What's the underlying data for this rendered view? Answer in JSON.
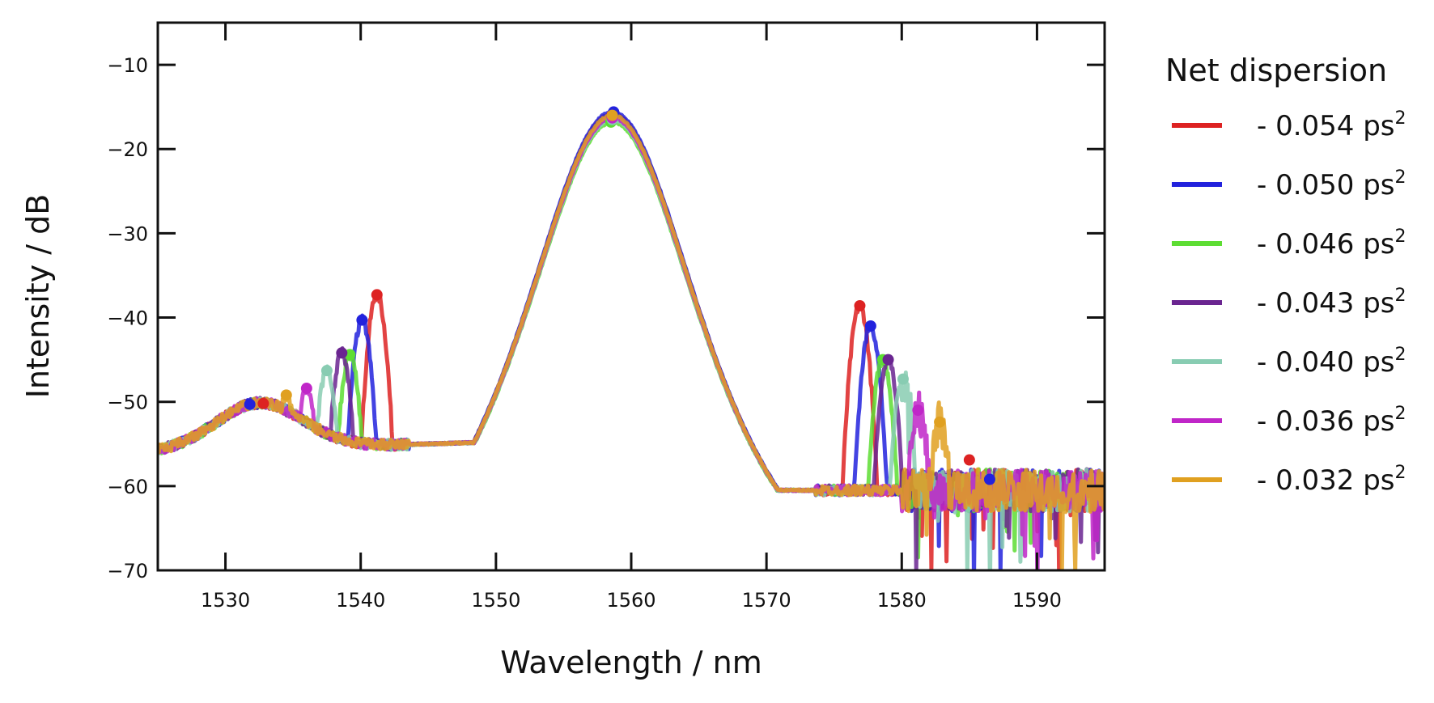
{
  "chart_data": {
    "type": "line",
    "title": "",
    "xlabel": "Wavelength / nm",
    "ylabel": "Intensity / dB",
    "xlim": [
      1525,
      1595
    ],
    "ylim": [
      -70,
      -5
    ],
    "x_ticks": [
      1530,
      1540,
      1550,
      1560,
      1570,
      1580,
      1590
    ],
    "y_ticks": [
      -70,
      -60,
      -50,
      -40,
      -30,
      -20,
      -10
    ],
    "x_tick_labels": [
      "1530",
      "1540",
      "1550",
      "1560",
      "1570",
      "1580",
      "1590"
    ],
    "y_tick_labels": [
      "−70",
      "−60",
      "−50",
      "−40",
      "−30",
      "−20",
      "−10"
    ],
    "grid": false,
    "legend": {
      "title": "Net dispersion",
      "placement": "outside-right"
    },
    "peak_center_nm": 1558.6,
    "series": [
      {
        "name": "- 0.054 ps",
        "name_sup": "2",
        "color": "#dd2222",
        "peak_db": -15.8,
        "markers": [
          [
            1532.8,
            -50.2
          ],
          [
            1541.2,
            -37.3
          ],
          [
            1558.6,
            -15.9
          ],
          [
            1576.9,
            -38.6
          ],
          [
            1585.0,
            -56.9
          ]
        ]
      },
      {
        "name": "- 0.050 ps",
        "name_sup": "2",
        "color": "#2222dd",
        "peak_db": -15.6,
        "markers": [
          [
            1531.8,
            -50.3
          ],
          [
            1540.1,
            -40.3
          ],
          [
            1558.7,
            -15.6
          ],
          [
            1577.7,
            -41.0
          ],
          [
            1586.5,
            -59.2
          ]
        ]
      },
      {
        "name": "- 0.046 ps",
        "name_sup": "2",
        "color": "#5ddd33",
        "peak_db": -16.8,
        "markers": [
          [
            1539.2,
            -44.4
          ],
          [
            1558.5,
            -16.8
          ],
          [
            1578.6,
            -45.0
          ]
        ]
      },
      {
        "name": "- 0.043 ps",
        "name_sup": "2",
        "color": "#6a2590",
        "peak_db": -16.2,
        "markers": [
          [
            1538.6,
            -44.2
          ],
          [
            1558.6,
            -16.2
          ],
          [
            1579.0,
            -45.0
          ]
        ]
      },
      {
        "name": "- 0.040 ps",
        "name_sup": "2",
        "color": "#88ccb2",
        "peak_db": -16.5,
        "markers": [
          [
            1537.5,
            -46.3
          ],
          [
            1558.6,
            -16.5
          ],
          [
            1580.1,
            -47.3
          ]
        ]
      },
      {
        "name": "- 0.036 ps",
        "name_sup": "2",
        "color": "#c026c8",
        "peak_db": -16.3,
        "markers": [
          [
            1536.0,
            -48.4
          ],
          [
            1558.6,
            -16.3
          ],
          [
            1581.2,
            -51.0
          ]
        ]
      },
      {
        "name": "- 0.032 ps",
        "name_sup": "2",
        "color": "#e0a020",
        "peak_db": -16.0,
        "markers": [
          [
            1534.5,
            -49.2
          ],
          [
            1558.6,
            -16.0
          ],
          [
            1582.8,
            -52.4
          ]
        ]
      }
    ]
  }
}
